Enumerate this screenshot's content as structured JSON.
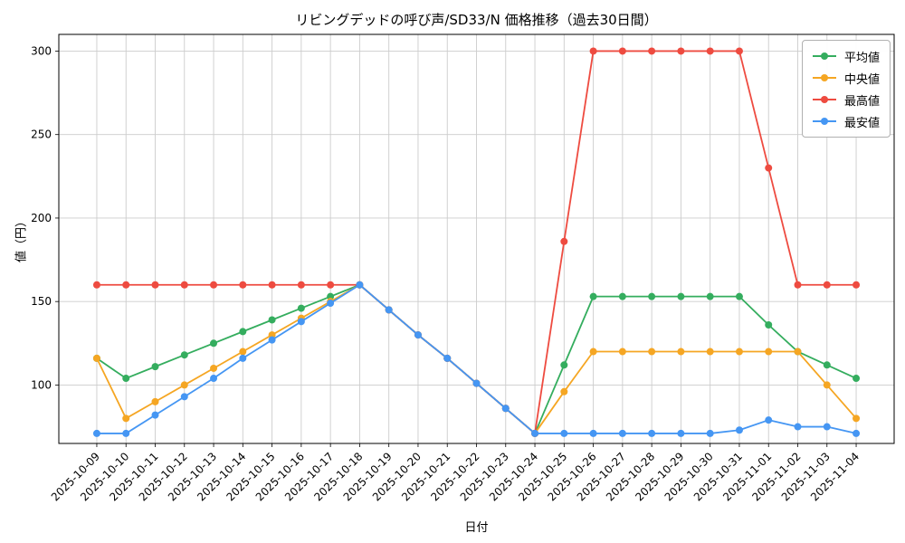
{
  "chart_data": {
    "type": "line",
    "title": "リビングデッドの呼び声/SD33/N 価格推移（過去30日間）",
    "xlabel": "日付",
    "ylabel": "値（円）",
    "ylim": [
      65,
      310
    ],
    "yticks": [
      100,
      150,
      200,
      250,
      300
    ],
    "grid": true,
    "legend_position": "upper right",
    "categories": [
      "2025-10-09",
      "2025-10-10",
      "2025-10-11",
      "2025-10-12",
      "2025-10-13",
      "2025-10-14",
      "2025-10-15",
      "2025-10-16",
      "2025-10-17",
      "2025-10-18",
      "2025-10-19",
      "2025-10-20",
      "2025-10-21",
      "2025-10-22",
      "2025-10-23",
      "2025-10-24",
      "2025-10-25",
      "2025-10-26",
      "2025-10-27",
      "2025-10-28",
      "2025-10-29",
      "2025-10-30",
      "2025-10-31",
      "2025-11-01",
      "2025-11-02",
      "2025-11-03",
      "2025-11-04"
    ],
    "series": [
      {
        "name": "平均値",
        "color": "#34ad5e",
        "values": [
          116,
          104,
          111,
          118,
          125,
          132,
          139,
          146,
          153,
          160,
          145,
          130,
          116,
          101,
          86,
          71,
          112,
          153,
          153,
          153,
          153,
          153,
          153,
          136,
          120,
          112,
          104
        ]
      },
      {
        "name": "中央値",
        "color": "#f5a623",
        "values": [
          116,
          80,
          90,
          100,
          110,
          120,
          130,
          140,
          150,
          160,
          145,
          130,
          116,
          101,
          86,
          71,
          96,
          120,
          120,
          120,
          120,
          120,
          120,
          120,
          120,
          100,
          80
        ]
      },
      {
        "name": "最高値",
        "color": "#ee4b40",
        "values": [
          160,
          160,
          160,
          160,
          160,
          160,
          160,
          160,
          160,
          160,
          145,
          130,
          116,
          101,
          86,
          71,
          186,
          300,
          300,
          300,
          300,
          300,
          300,
          230,
          160,
          160,
          160
        ]
      },
      {
        "name": "最安値",
        "color": "#4596f3",
        "values": [
          71,
          71,
          82,
          93,
          104,
          116,
          127,
          138,
          149,
          160,
          145,
          130,
          116,
          101,
          86,
          71,
          71,
          71,
          71,
          71,
          71,
          71,
          73,
          79,
          75,
          75,
          71
        ]
      }
    ]
  }
}
